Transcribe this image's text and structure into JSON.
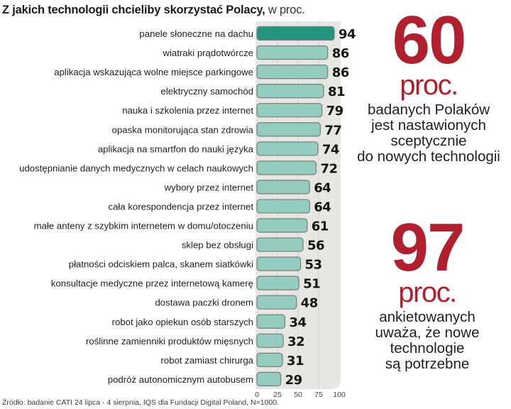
{
  "chart_data": {
    "type": "bar",
    "orientation": "horizontal",
    "title": "Z jakich technologii chcieliby skorzystać Polacy,",
    "title_unit": "w proc.",
    "xlabel": "",
    "ylabel": "",
    "xlim": [
      0,
      100
    ],
    "xticks": [
      0,
      25,
      50,
      75,
      100
    ],
    "grid": true,
    "highlight_color": "#26957f",
    "bar_color": "#94cdbf",
    "bar_stroke": "#7a7a7a",
    "panel_color": "#e6e6e3",
    "categories": [
      "panele słoneczne na dachu",
      "wiatraki prądotwórcze",
      "aplikacja wskazująca wolne miejsce parkingowe",
      "elektryczny samochód",
      "nauka i szkolenia przez internet",
      "opaska monitorująca stan zdrowia",
      "aplikacja na smartfon do nauki języka",
      "udostępnianie danych medycznych w celach naukowych",
      "wybory przez internet",
      "cała korespondencja przez internet",
      "małe anteny z szybkim internetem w domu/otoczeniu",
      "sklep bez obsługi",
      "płatności odciskiem palca, skanem siatkówki",
      "konsultacje medyczne przez internetową kamerę",
      "dostawa paczki dronem",
      "robot jako opiekun osób starszych",
      "roślinne zamienniki produktów mięsnych",
      "robot zamiast chirurga",
      "podróż autonomicznym autobusem"
    ],
    "values": [
      94,
      86,
      86,
      81,
      79,
      77,
      74,
      72,
      64,
      64,
      61,
      56,
      53,
      51,
      48,
      34,
      32,
      31,
      29
    ],
    "highlighted_index": 0
  },
  "source": "Źródło: badanie CATI 24 lipca - 4 sierpnia, IQS dla Fundacji Digital Poland, N=1000.",
  "stats": [
    {
      "value": "60",
      "unit": "proc.",
      "lines": [
        "badanych Polaków",
        "jest nastawionych",
        "sceptycznie",
        "do nowych technologii"
      ]
    },
    {
      "value": "97",
      "unit": "proc.",
      "lines": [
        "ankietowanych",
        "uważa, że nowe",
        "technologie",
        "są potrzebne"
      ]
    }
  ],
  "colors": {
    "accent_red": "#b0202e"
  }
}
